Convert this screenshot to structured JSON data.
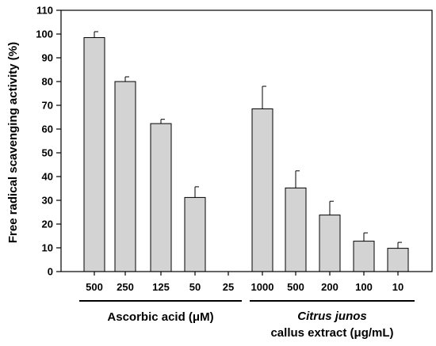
{
  "chart_data": {
    "type": "bar",
    "ylabel": "Free radical scavenging activity (%)",
    "ylim": [
      0,
      110
    ],
    "yticks": [
      "0",
      "10",
      "20",
      "30",
      "40",
      "50",
      "60",
      "70",
      "80",
      "90",
      "100",
      "110"
    ],
    "error_bars": true,
    "bar_color": "#d3d3d3",
    "groups": [
      {
        "label": "Ascorbic acid (μM)",
        "label_parts": [
          {
            "text": "Ascorbic acid (μM)",
            "italic": false
          }
        ],
        "categories": [
          "500",
          "250",
          "125",
          "50",
          "25"
        ],
        "values": [
          98.5,
          80.0,
          62.3,
          31.2,
          0
        ],
        "errors": [
          2.5,
          2.0,
          1.8,
          4.5,
          0
        ]
      },
      {
        "label": "Citrus junos callus extract (μg/mL)",
        "label_parts": [
          {
            "text": "Citrus junos",
            "italic": true
          },
          {
            "text": "callus extract (μg/mL)",
            "italic": false
          }
        ],
        "categories": [
          "1000",
          "500",
          "200",
          "100",
          "10"
        ],
        "values": [
          68.5,
          35.2,
          23.8,
          12.8,
          9.8
        ],
        "errors": [
          9.5,
          7.2,
          5.8,
          3.5,
          2.5
        ]
      }
    ]
  }
}
